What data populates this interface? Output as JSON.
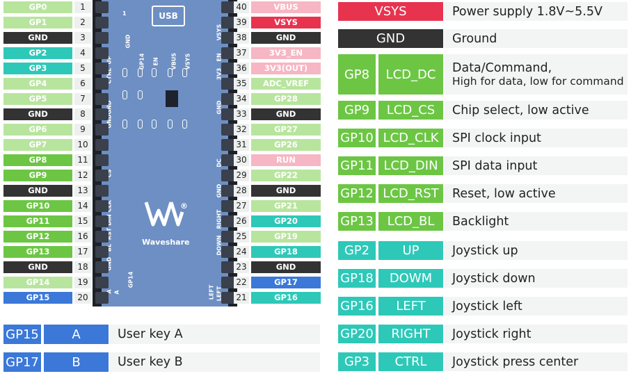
{
  "left_pins": [
    {
      "num": "1",
      "label": "GP0",
      "color": "#b8e59e",
      "text": "#ffffff"
    },
    {
      "num": "2",
      "label": "GP1",
      "color": "#b8e59e",
      "text": "#ffffff"
    },
    {
      "num": "3",
      "label": "GND",
      "color": "#333333",
      "text": "#ffffff"
    },
    {
      "num": "4",
      "label": "GP2",
      "color": "#2ec8b8",
      "text": "#ffffff"
    },
    {
      "num": "5",
      "label": "GP3",
      "color": "#2ec8b8",
      "text": "#ffffff"
    },
    {
      "num": "6",
      "label": "GP4",
      "color": "#b8e59e",
      "text": "#ffffff"
    },
    {
      "num": "7",
      "label": "GP5",
      "color": "#b8e59e",
      "text": "#ffffff"
    },
    {
      "num": "8",
      "label": "GND",
      "color": "#333333",
      "text": "#ffffff"
    },
    {
      "num": "9",
      "label": "GP6",
      "color": "#b8e59e",
      "text": "#ffffff"
    },
    {
      "num": "10",
      "label": "GP7",
      "color": "#b8e59e",
      "text": "#ffffff"
    },
    {
      "num": "11",
      "label": "GP8",
      "color": "#6cc644",
      "text": "#ffffff"
    },
    {
      "num": "12",
      "label": "GP9",
      "color": "#6cc644",
      "text": "#ffffff"
    },
    {
      "num": "13",
      "label": "GND",
      "color": "#333333",
      "text": "#ffffff"
    },
    {
      "num": "14",
      "label": "GP10",
      "color": "#6cc644",
      "text": "#ffffff"
    },
    {
      "num": "15",
      "label": "GP11",
      "color": "#6cc644",
      "text": "#ffffff"
    },
    {
      "num": "16",
      "label": "GP12",
      "color": "#6cc644",
      "text": "#ffffff"
    },
    {
      "num": "17",
      "label": "GP13",
      "color": "#6cc644",
      "text": "#ffffff"
    },
    {
      "num": "18",
      "label": "GND",
      "color": "#333333",
      "text": "#ffffff"
    },
    {
      "num": "19",
      "label": "GP14",
      "color": "#b8e59e",
      "text": "#ffffff"
    },
    {
      "num": "20",
      "label": "GP15",
      "color": "#3b78d8",
      "text": "#ffffff"
    }
  ],
  "right_pins": [
    {
      "num": "40",
      "label": "VBUS",
      "color": "#f7b6c3",
      "text": "#ffffff"
    },
    {
      "num": "39",
      "label": "VSYS",
      "color": "#e8334f",
      "text": "#ffffff"
    },
    {
      "num": "38",
      "label": "GND",
      "color": "#333333",
      "text": "#ffffff"
    },
    {
      "num": "37",
      "label": "3V3_EN",
      "color": "#f7b6c3",
      "text": "#ffffff"
    },
    {
      "num": "36",
      "label": "3V3(OUT)",
      "color": "#f7b6c3",
      "text": "#ffffff"
    },
    {
      "num": "35",
      "label": "ADC_VREF",
      "color": "#b8e59e",
      "text": "#ffffff"
    },
    {
      "num": "34",
      "label": "GP28",
      "color": "#b8e59e",
      "text": "#ffffff"
    },
    {
      "num": "33",
      "label": "GND",
      "color": "#333333",
      "text": "#ffffff"
    },
    {
      "num": "32",
      "label": "GP27",
      "color": "#b8e59e",
      "text": "#ffffff"
    },
    {
      "num": "31",
      "label": "GP26",
      "color": "#b8e59e",
      "text": "#ffffff"
    },
    {
      "num": "30",
      "label": "RUN",
      "color": "#f7b6c3",
      "text": "#ffffff"
    },
    {
      "num": "29",
      "label": "GP22",
      "color": "#b8e59e",
      "text": "#ffffff"
    },
    {
      "num": "28",
      "label": "GND",
      "color": "#333333",
      "text": "#ffffff"
    },
    {
      "num": "27",
      "label": "GP21",
      "color": "#b8e59e",
      "text": "#ffffff"
    },
    {
      "num": "26",
      "label": "GP20",
      "color": "#2ec8b8",
      "text": "#ffffff"
    },
    {
      "num": "25",
      "label": "GP19",
      "color": "#b8e59e",
      "text": "#ffffff"
    },
    {
      "num": "24",
      "label": "GP18",
      "color": "#2ec8b8",
      "text": "#ffffff"
    },
    {
      "num": "23",
      "label": "GND",
      "color": "#333333",
      "text": "#ffffff"
    },
    {
      "num": "22",
      "label": "GP17",
      "color": "#3b78d8",
      "text": "#ffffff"
    },
    {
      "num": "21",
      "label": "GP16",
      "color": "#2ec8b8",
      "text": "#ffffff"
    }
  ],
  "board": {
    "usb_label": "USB",
    "brand": "Waveshare",
    "registered": "®",
    "pin_one": "1",
    "top_labels": [
      "GP14",
      "EN",
      "VBUS",
      "VSYS"
    ],
    "left_silk": [
      "UP",
      "CTRL",
      "GND",
      "GND",
      "CS",
      "CLK",
      "DIN",
      "RST",
      "BL",
      "GND",
      "A"
    ],
    "left_silk_inner": [
      "GND",
      "GP14",
      "EN"
    ],
    "right_silk": [
      "VSYS",
      "EN",
      "3V3",
      "GND",
      "DC",
      "GND",
      "RIGHT",
      "DOWN",
      "LEFT"
    ],
    "right_silk_inner": [
      "VBUS",
      "VSYS"
    ],
    "bottom_labels": [
      "GP14",
      "A",
      "LEFT"
    ]
  },
  "func_rows": [
    {
      "pin": "VSYS",
      "desc": "Power supply 1.8V~5.5V",
      "pin_color": "#e8334f"
    },
    {
      "pin": "GND",
      "desc": "Ground",
      "pin_color": "#333333"
    },
    {
      "pin": "GP8",
      "name": "LCD_DC",
      "desc": "Data/Command,",
      "sub": "High for data, low for command",
      "pin_color": "#6cc644",
      "name_color": "#6cc644"
    },
    {
      "pin": "GP9",
      "name": "LCD_CS",
      "desc": "Chip select, low active",
      "pin_color": "#6cc644",
      "name_color": "#6cc644"
    },
    {
      "pin": "GP10",
      "name": "LCD_CLK",
      "desc": "SPI clock input",
      "pin_color": "#6cc644",
      "name_color": "#6cc644"
    },
    {
      "pin": "GP11",
      "name": "LCD_DIN",
      "desc": "SPI data input",
      "pin_color": "#6cc644",
      "name_color": "#6cc644"
    },
    {
      "pin": "GP12",
      "name": "LCD_RST",
      "desc": "Reset, low active",
      "pin_color": "#6cc644",
      "name_color": "#6cc644"
    },
    {
      "pin": "GP13",
      "name": "LCD_BL",
      "desc": "Backlight",
      "pin_color": "#6cc644",
      "name_color": "#6cc644"
    },
    {
      "pin": "GP2",
      "name": "UP",
      "desc": "Joystick up",
      "pin_color": "#2ec8b8",
      "name_color": "#2ec8b8"
    },
    {
      "pin": "GP18",
      "name": "DOWM",
      "desc": "Joystick down",
      "pin_color": "#2ec8b8",
      "name_color": "#2ec8b8"
    },
    {
      "pin": "GP16",
      "name": "LEFT",
      "desc": "Joystick left",
      "pin_color": "#2ec8b8",
      "name_color": "#2ec8b8"
    },
    {
      "pin": "GP20",
      "name": "RIGHT",
      "desc": "Joystick right",
      "pin_color": "#2ec8b8",
      "name_color": "#2ec8b8"
    },
    {
      "pin": "GP3",
      "name": "CTRL",
      "desc": "Joystick press center",
      "pin_color": "#2ec8b8",
      "name_color": "#2ec8b8"
    }
  ],
  "key_rows": [
    {
      "pin": "GP15",
      "name": "A",
      "desc": "User key A",
      "color": "#3b78d8"
    },
    {
      "pin": "GP17",
      "name": "B",
      "desc": "User key B",
      "color": "#3b78d8"
    }
  ]
}
